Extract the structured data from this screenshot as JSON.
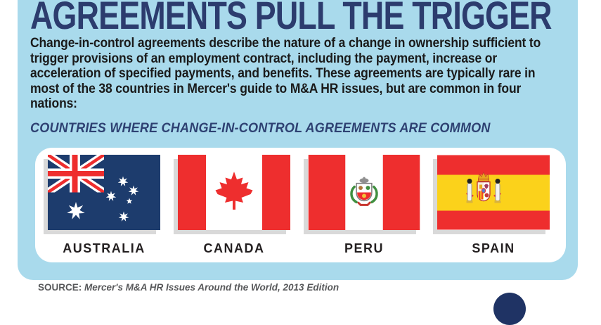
{
  "header": {
    "title": "AGREEMENTS PULL THE TRIGGER"
  },
  "intro": {
    "text": "Change-in-control agreements describe the nature of a change in ownership sufficient to trigger provisions of an employment contract, including the payment, increase or acceleration of specified payments, and benefits. These agreements are typically rare in most of the 38 countries in Mercer's guide to M&A HR issues, but are common in four nations:"
  },
  "section": {
    "heading": "COUNTRIES WHERE CHANGE-IN-CONTROL AGREEMENTS ARE COMMON"
  },
  "countries": [
    {
      "name": "AUSTRALIA",
      "flag_icon": "australia-flag"
    },
    {
      "name": "CANADA",
      "flag_icon": "canada-flag"
    },
    {
      "name": "PERU",
      "flag_icon": "peru-flag"
    },
    {
      "name": "SPAIN",
      "flag_icon": "spain-flag"
    }
  ],
  "footer": {
    "source_label": "SOURCE:",
    "source_text": "Mercer's M&A HR Issues Around the World, 2013 Edition"
  },
  "colors": {
    "panel_blue": "#a9daec",
    "headline_navy": "#2c3c6e",
    "body_text": "#1a1a1a",
    "section_navy": "#2e4172",
    "flag_red": "#ee2e2e",
    "australia_field_navy": "#1d3c6d",
    "spain_yellow": "#fbd21b",
    "peru_wreath_green": "#3f8f3f",
    "flag_shadow_gray": "#d9d9d9",
    "source_gray": "#58595b",
    "logo_navy": "#1f3364",
    "card_white": "#ffffff"
  }
}
